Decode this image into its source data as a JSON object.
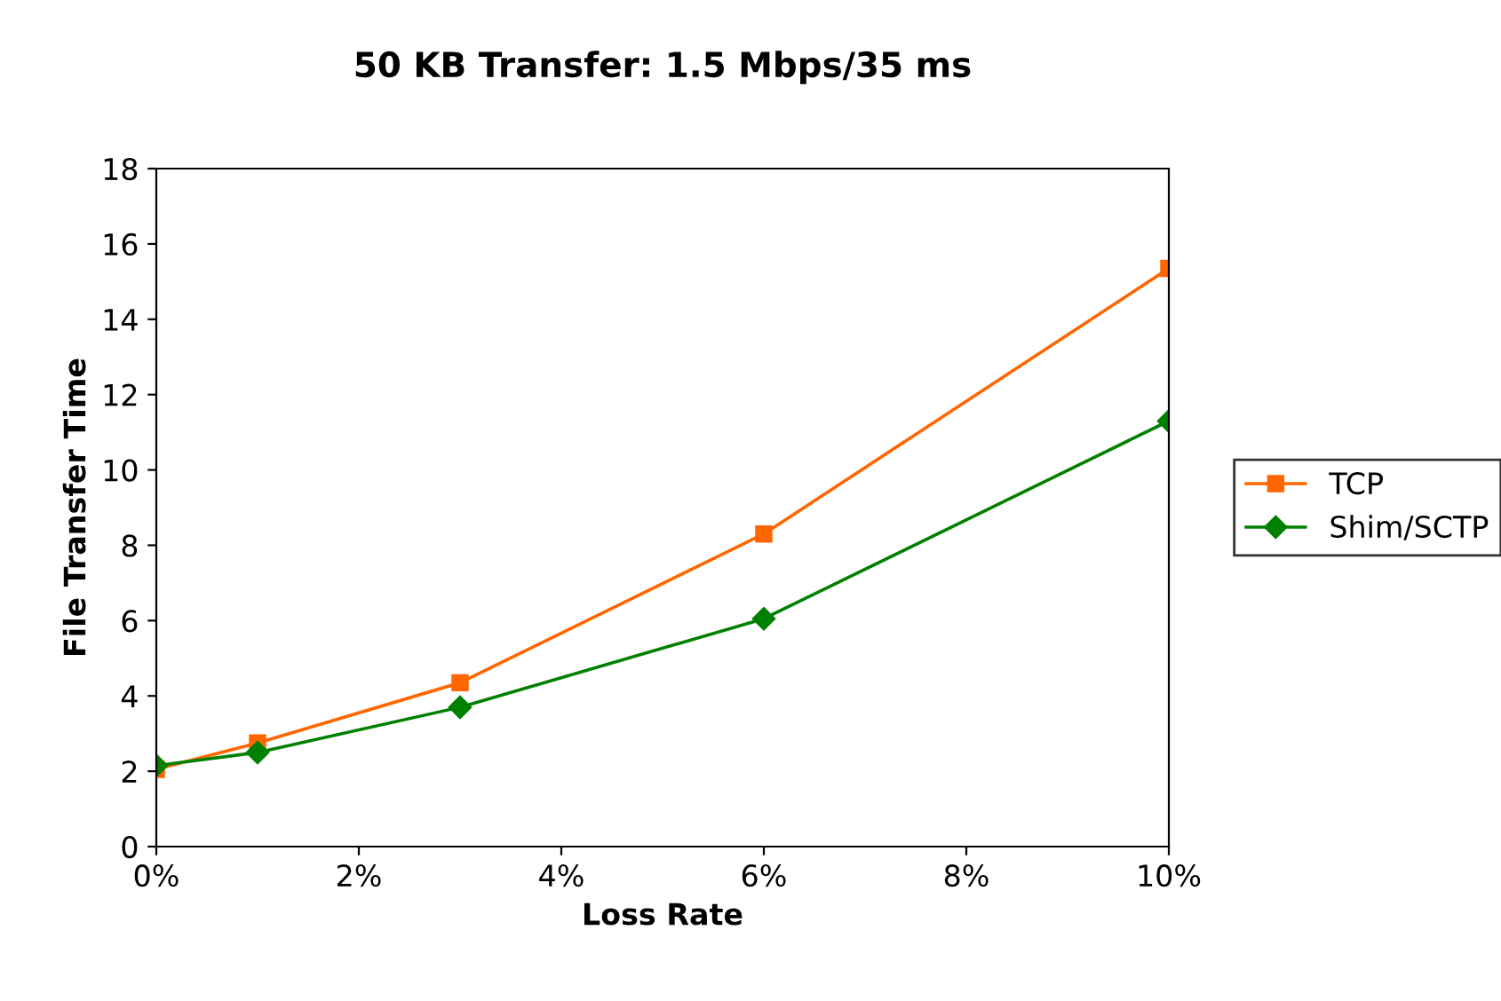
{
  "chart_data": {
    "type": "line",
    "title": "50 KB Transfer: 1.5 Mbps/35 ms",
    "xlabel": "Loss Rate",
    "ylabel": "File Transfer Time",
    "x": [
      0,
      1,
      3,
      6,
      10
    ],
    "series": [
      {
        "name": "TCP",
        "color": "#ff6600",
        "marker": "square",
        "values": [
          2.05,
          2.75,
          4.35,
          8.3,
          15.35
        ]
      },
      {
        "name": "Shim/SCTP",
        "color": "#008000",
        "marker": "diamond",
        "values": [
          2.15,
          2.5,
          3.7,
          6.05,
          11.3
        ]
      }
    ],
    "xlim": [
      0,
      10
    ],
    "ylim": [
      0,
      18
    ],
    "xticks": [
      {
        "value": 0,
        "label": "0%"
      },
      {
        "value": 2,
        "label": "2%"
      },
      {
        "value": 4,
        "label": "4%"
      },
      {
        "value": 6,
        "label": "6%"
      },
      {
        "value": 8,
        "label": "8%"
      },
      {
        "value": 10,
        "label": "10%"
      }
    ],
    "yticks": [
      0,
      2,
      4,
      6,
      8,
      10,
      12,
      14,
      16,
      18
    ],
    "grid": false,
    "legend": "right",
    "line_style": "solid"
  }
}
